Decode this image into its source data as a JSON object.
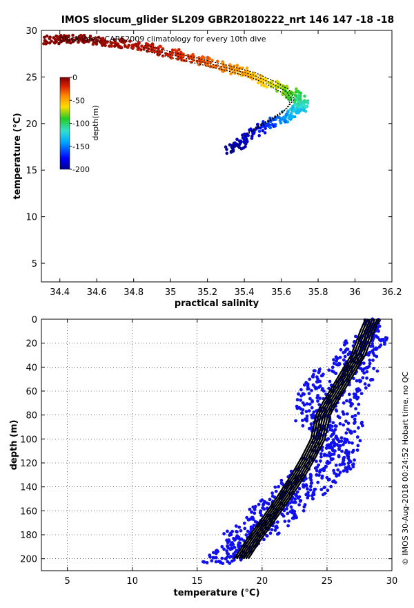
{
  "figure": {
    "title": "IMOS slocum_glider SL209 GBR20180222_nrt 146  147  -18  -18",
    "footer": "© IMOS 30-Aug-2018 00:24:52 Hobart time, no QC"
  },
  "chart_data": [
    {
      "type": "scatter",
      "subtitle": "black lines: CARS2009 climatology for every 10th dive",
      "xlabel": "practical salinity",
      "ylabel": "temperature (°C)",
      "xlim": [
        34.3,
        36.2
      ],
      "ylim": [
        3,
        30
      ],
      "xticks": [
        34.4,
        34.6,
        34.8,
        35,
        35.2,
        35.4,
        35.6,
        35.8,
        36,
        36.2
      ],
      "yticks": [
        5,
        10,
        15,
        20,
        25,
        30
      ],
      "grid": false,
      "colorbar": {
        "label": "depth(m)",
        "ticks": [
          0,
          -50,
          -100,
          -150,
          -200
        ],
        "range": [
          -200,
          0
        ],
        "position": "top-left",
        "colors": [
          "#00008f",
          "#0000ff",
          "#00aaff",
          "#33e0cc",
          "#22cc22",
          "#ffdd00",
          "#ff8800",
          "#dd2200",
          "#800000"
        ]
      },
      "series": [
        {
          "role": "observations coloured by depth",
          "points": [
            {
              "s": 34.32,
              "t": 28.9,
              "d": 2
            },
            {
              "s": 34.42,
              "t": 29.0,
              "d": 3
            },
            {
              "s": 34.5,
              "t": 29.1,
              "d": 4
            },
            {
              "s": 34.6,
              "t": 28.9,
              "d": 6
            },
            {
              "s": 34.7,
              "t": 28.7,
              "d": 9
            },
            {
              "s": 34.8,
              "t": 28.4,
              "d": 12
            },
            {
              "s": 34.9,
              "t": 28.0,
              "d": 18
            },
            {
              "s": 35.0,
              "t": 27.6,
              "d": 24
            },
            {
              "s": 35.1,
              "t": 27.1,
              "d": 30
            },
            {
              "s": 35.2,
              "t": 26.6,
              "d": 38
            },
            {
              "s": 35.3,
              "t": 26.0,
              "d": 48
            },
            {
              "s": 35.4,
              "t": 25.4,
              "d": 58
            },
            {
              "s": 35.5,
              "t": 24.7,
              "d": 70
            },
            {
              "s": 35.58,
              "t": 24.0,
              "d": 82
            },
            {
              "s": 35.65,
              "t": 23.3,
              "d": 95
            },
            {
              "s": 35.7,
              "t": 22.6,
              "d": 110
            },
            {
              "s": 35.72,
              "t": 22.0,
              "d": 125
            },
            {
              "s": 35.68,
              "t": 21.3,
              "d": 140
            },
            {
              "s": 35.6,
              "t": 20.5,
              "d": 155
            },
            {
              "s": 35.52,
              "t": 19.8,
              "d": 168
            },
            {
              "s": 35.45,
              "t": 19.0,
              "d": 180
            },
            {
              "s": 35.38,
              "t": 18.0,
              "d": 192
            },
            {
              "s": 35.33,
              "t": 17.0,
              "d": 200
            }
          ]
        },
        {
          "role": "climatology (black)",
          "points": [
            {
              "s": 34.85,
              "t": 28.2
            },
            {
              "s": 35.0,
              "t": 27.4
            },
            {
              "s": 35.15,
              "t": 26.7
            },
            {
              "s": 35.3,
              "t": 26.0
            },
            {
              "s": 35.45,
              "t": 25.2
            },
            {
              "s": 35.55,
              "t": 24.3
            },
            {
              "s": 35.63,
              "t": 23.4
            },
            {
              "s": 35.66,
              "t": 22.4
            },
            {
              "s": 35.62,
              "t": 21.4
            },
            {
              "s": 35.55,
              "t": 20.5
            },
            {
              "s": 35.47,
              "t": 19.6
            },
            {
              "s": 35.4,
              "t": 18.7
            }
          ]
        }
      ]
    },
    {
      "type": "scatter",
      "xlabel": "temperature (°C)",
      "ylabel": "depth (m)",
      "xlim": [
        3,
        30
      ],
      "ylim": [
        0,
        210
      ],
      "y_reversed": true,
      "xticks": [
        5,
        10,
        15,
        20,
        25,
        30
      ],
      "yticks": [
        0,
        20,
        40,
        60,
        80,
        100,
        120,
        140,
        160,
        180,
        200
      ],
      "grid": true,
      "series": [
        {
          "role": "observations (blue)",
          "color": "#1010ee",
          "points": [
            {
              "t": 28.5,
              "d": 0
            },
            {
              "t": 28.4,
              "d": 10
            },
            {
              "t": 27.9,
              "d": 20
            },
            {
              "t": 27.3,
              "d": 30
            },
            {
              "t": 26.7,
              "d": 40
            },
            {
              "t": 26.0,
              "d": 50
            },
            {
              "t": 25.4,
              "d": 60
            },
            {
              "t": 25.0,
              "d": 70
            },
            {
              "t": 24.9,
              "d": 80
            },
            {
              "t": 25.2,
              "d": 90
            },
            {
              "t": 25.8,
              "d": 100
            },
            {
              "t": 25.6,
              "d": 110
            },
            {
              "t": 25.0,
              "d": 120
            },
            {
              "t": 24.2,
              "d": 130
            },
            {
              "t": 23.2,
              "d": 140
            },
            {
              "t": 22.2,
              "d": 150
            },
            {
              "t": 21.2,
              "d": 160
            },
            {
              "t": 20.2,
              "d": 170
            },
            {
              "t": 19.2,
              "d": 180
            },
            {
              "t": 18.2,
              "d": 190
            },
            {
              "t": 17.2,
              "d": 200
            },
            {
              "t": 16.8,
              "d": 203
            }
          ]
        },
        {
          "role": "climatology (black)",
          "color": "#000000",
          "points": [
            {
              "t": 28.5,
              "d": 0
            },
            {
              "t": 28.1,
              "d": 10
            },
            {
              "t": 27.4,
              "d": 30
            },
            {
              "t": 26.3,
              "d": 50
            },
            {
              "t": 25.2,
              "d": 70
            },
            {
              "t": 24.7,
              "d": 80
            },
            {
              "t": 24.3,
              "d": 100
            },
            {
              "t": 23.6,
              "d": 115
            },
            {
              "t": 22.8,
              "d": 130
            },
            {
              "t": 21.6,
              "d": 150
            },
            {
              "t": 20.3,
              "d": 170
            },
            {
              "t": 19.3,
              "d": 185
            },
            {
              "t": 18.4,
              "d": 200
            }
          ]
        }
      ]
    }
  ]
}
